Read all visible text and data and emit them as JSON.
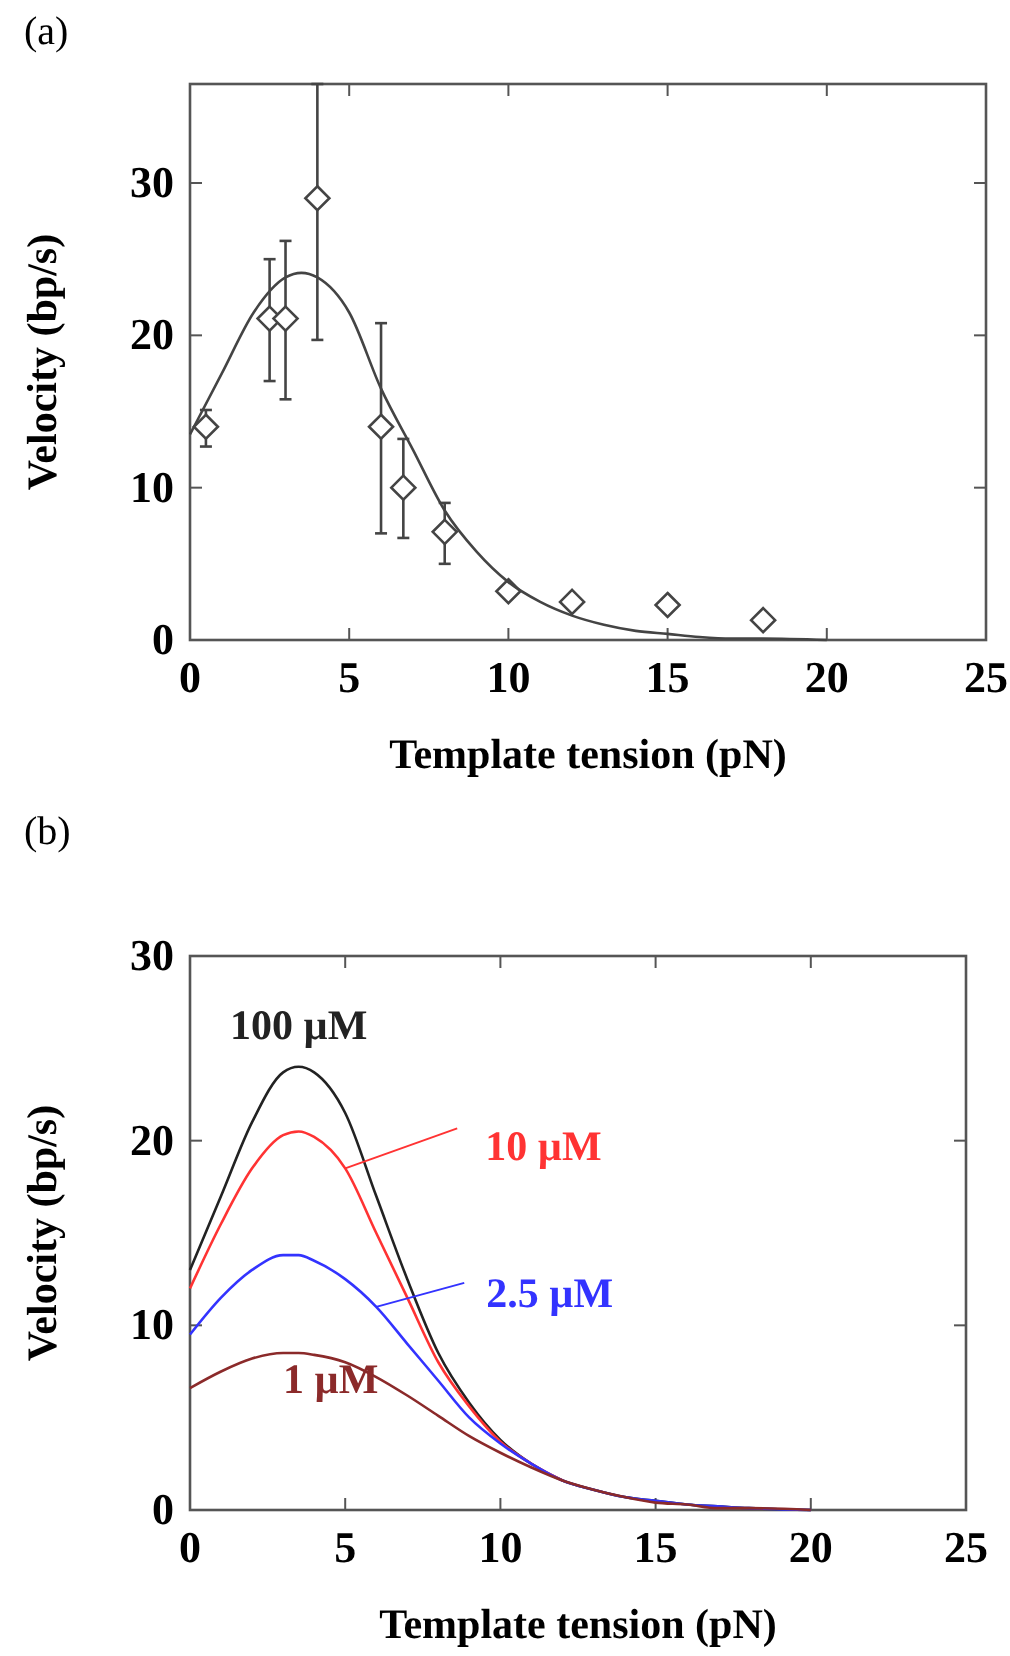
{
  "chart_data": [
    {
      "type": "scatter",
      "title": "(a)",
      "xlabel": "Template tension (pN)",
      "ylabel": "Velocity (bp/s)",
      "xlim": [
        0,
        25
      ],
      "xticks": [
        0,
        5,
        10,
        15,
        20,
        25
      ],
      "ylim": [
        0,
        36.5
      ],
      "yticks": [
        0,
        10,
        20,
        30
      ],
      "grid": false,
      "series": [
        {
          "marker": "diamond",
          "color": "#444444",
          "x": [
            0.5,
            2.5,
            3,
            4,
            6,
            6.7,
            8,
            10,
            12,
            15,
            18
          ],
          "values": [
            14,
            21.1,
            21.1,
            29,
            14,
            10,
            7.1,
            3.2,
            2.5,
            2.3,
            1.3
          ],
          "errors": [
            [
              12.7,
              15.1
            ],
            [
              17,
              25
            ],
            [
              15.8,
              26.2
            ],
            [
              19.7,
              36.5
            ],
            [
              7,
              20.8
            ],
            [
              6.7,
              13.2
            ],
            [
              5,
              9
            ],
            null,
            null,
            null,
            null
          ]
        },
        {
          "type": "line",
          "color": "#444444",
          "x": [
            0,
            1,
            2,
            3,
            3.5,
            4,
            5,
            6,
            7,
            8,
            9,
            10,
            11,
            12,
            13,
            14,
            15,
            16,
            17,
            18,
            20
          ],
          "values": [
            13.5,
            17.5,
            21.5,
            23.8,
            24.1,
            23.8,
            21.5,
            16.5,
            12.5,
            8.5,
            5.8,
            3.8,
            2.5,
            1.6,
            1,
            0.6,
            0.4,
            0.2,
            0.1,
            0.1,
            0
          ]
        }
      ]
    },
    {
      "type": "line",
      "title": "(b)",
      "xlabel": "Template tension (pN)",
      "ylabel": "Velocity (bp/s)",
      "xlim": [
        0,
        25
      ],
      "xticks": [
        0,
        5,
        10,
        15,
        20,
        25
      ],
      "ylim": [
        0,
        30
      ],
      "yticks": [
        0,
        10,
        20,
        30
      ],
      "grid": false,
      "legend": "top",
      "x": [
        0,
        1,
        2,
        3,
        3.5,
        4,
        5,
        6,
        7,
        8,
        9,
        10,
        11,
        12,
        13,
        14,
        15,
        16,
        17,
        18,
        20
      ],
      "series": [
        {
          "name": "100 µM",
          "color": "#222222",
          "values": [
            13,
            17,
            21,
            23.7,
            24,
            23.7,
            21.5,
            17,
            12.5,
            8.5,
            5.8,
            3.8,
            2.5,
            1.6,
            1.1,
            0.7,
            0.5,
            0.3,
            0.2,
            0.1,
            0
          ]
        },
        {
          "name": "10 µM",
          "color": "#ff3333",
          "values": [
            12,
            15.5,
            18.5,
            20.3,
            20.5,
            20.2,
            18.5,
            15,
            11.5,
            8,
            5.6,
            3.7,
            2.5,
            1.6,
            null,
            null,
            null,
            null,
            null,
            null,
            null
          ]
        },
        {
          "name": "2.5 µM",
          "color": "#3333ff",
          "values": [
            9.5,
            11.5,
            13,
            13.8,
            13.8,
            13.5,
            12.5,
            11,
            9,
            7,
            5,
            3.6,
            2.5,
            1.6,
            1.1,
            0.7,
            0.5,
            0.3,
            0.2,
            0.1,
            0
          ]
        },
        {
          "name": "1 µM",
          "color": "#8b2a2a",
          "values": [
            6.6,
            7.5,
            8.2,
            8.5,
            8.5,
            8.4,
            8,
            7.2,
            6.2,
            5.1,
            4,
            3.1,
            2.3,
            1.6,
            1.1,
            0.7,
            0.4,
            0.3,
            0.1,
            0.1,
            0
          ]
        }
      ]
    }
  ]
}
